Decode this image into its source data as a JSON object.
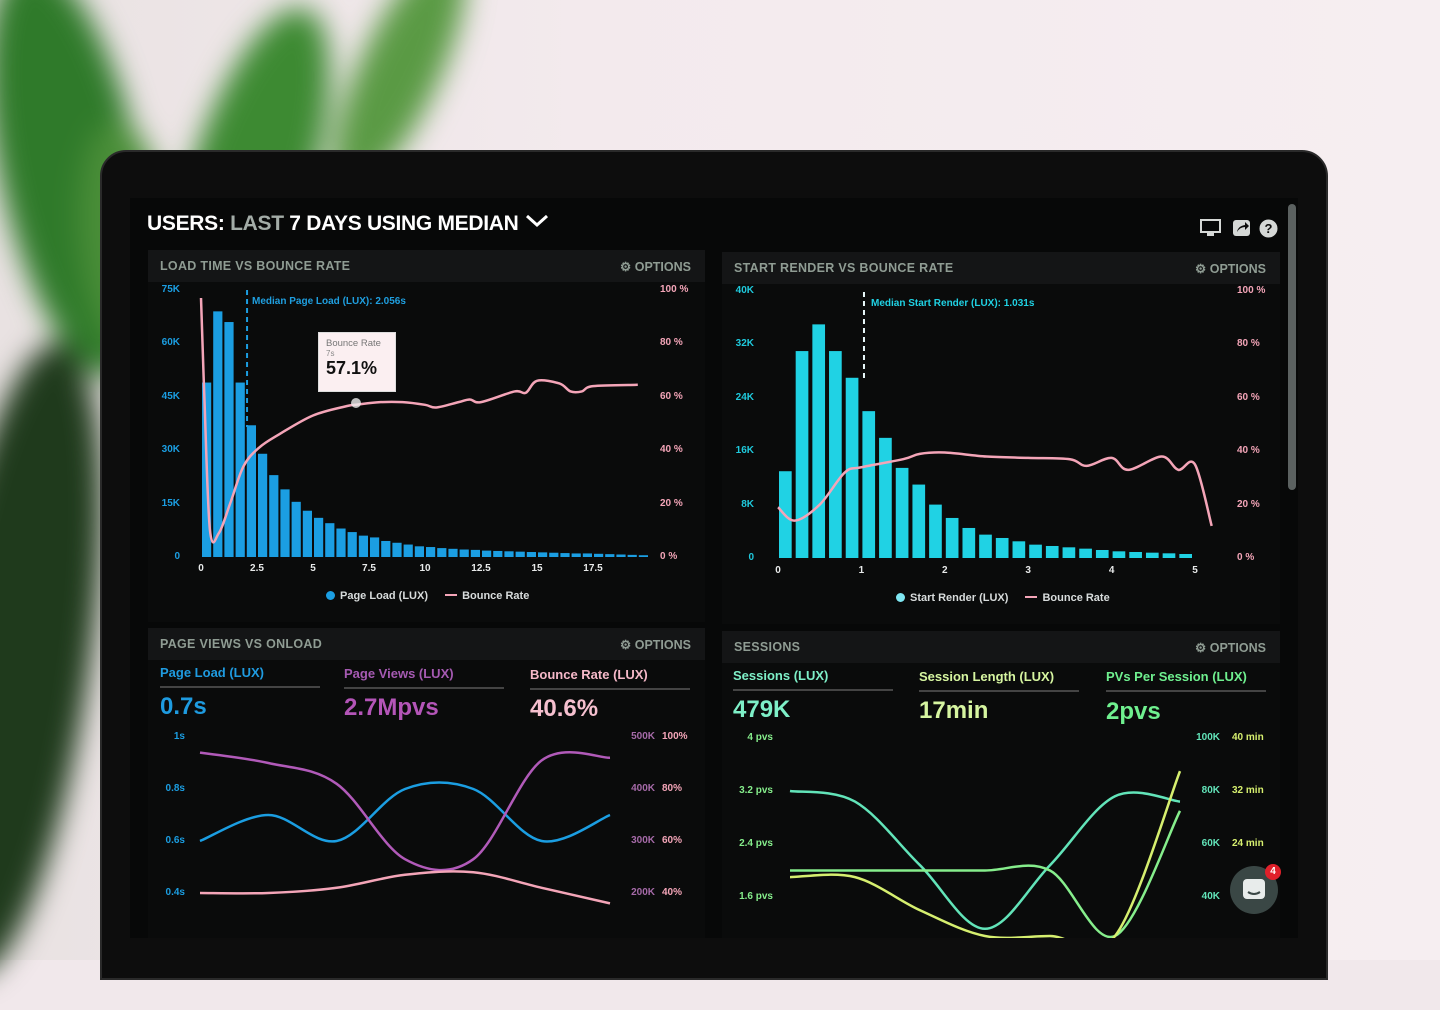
{
  "header": {
    "title_prefix": "USERS:",
    "title_range": "LAST",
    "title_rest": "7 DAYS USING MEDIAN",
    "chevron": "chevron-down-icon",
    "icons": [
      "monitor-icon",
      "share-icon",
      "help-icon"
    ]
  },
  "colors": {
    "page_load": "#1b9ee2",
    "start_render": "#20d2e4",
    "bounce": "#f4a5b8",
    "page_views": "#b15ab9",
    "sessions": "#62e4b9",
    "session_length": "#d6ef6f",
    "pvs_per_session": "#86ee8c"
  },
  "panels": {
    "load": {
      "title": "LOAD TIME VS BOUNCE RATE",
      "options": "OPTIONS",
      "median": "Median Page Load (LUX): 2.056s",
      "tooltip": {
        "label": "Bounce Rate",
        "sub": "7s",
        "value": "57.1%"
      },
      "legend": {
        "bars": "Page Load (LUX)",
        "line": "Bounce Rate"
      }
    },
    "render": {
      "title": "START RENDER VS BOUNCE RATE",
      "options": "OPTIONS",
      "median": "Median Start Render (LUX): 1.031s",
      "legend": {
        "bars": "Start Render (LUX)",
        "line": "Bounce Rate"
      }
    },
    "pageviews": {
      "title": "PAGE VIEWS VS ONLOAD",
      "options": "OPTIONS",
      "stats": [
        {
          "label": "Page Load (LUX)",
          "value": "0.7s"
        },
        {
          "label": "Page Views (LUX)",
          "value": "2.7Mpvs"
        },
        {
          "label": "Bounce Rate (LUX)",
          "value": "40.6%"
        }
      ]
    },
    "sessions": {
      "title": "SESSIONS",
      "options": "OPTIONS",
      "stats": [
        {
          "label": "Sessions (LUX)",
          "value": "479K"
        },
        {
          "label": "Session Length (LUX)",
          "value": "17min"
        },
        {
          "label": "PVs Per Session (LUX)",
          "value": "2pvs"
        }
      ]
    }
  },
  "chat": {
    "badge": "4"
  },
  "chart_data": [
    {
      "type": "bar",
      "x_ticks": [
        "0",
        "2.5",
        "5",
        "7.5",
        "10",
        "12.5",
        "15",
        "17.5"
      ],
      "xlim": [
        0,
        20
      ],
      "y_ticks": [
        "0",
        "15K",
        "30K",
        "45K",
        "60K",
        "75K"
      ],
      "ylim": [
        0,
        75000
      ],
      "y2_ticks": [
        "0 %",
        "20 %",
        "40 %",
        "60 %",
        "80 %",
        "100 %"
      ],
      "y2lim": [
        0,
        100
      ],
      "median_x": 2.056,
      "series": [
        {
          "name": "Page Load (LUX)",
          "type": "bar",
          "bar_width": 0.5,
          "x": [
            0,
            0.5,
            1,
            1.5,
            2,
            2.5,
            3,
            3.5,
            4,
            4.5,
            5,
            5.5,
            6,
            6.5,
            7,
            7.5,
            8,
            8.5,
            9,
            9.5,
            10,
            10.5,
            11,
            11.5,
            12,
            12.5,
            13,
            13.5,
            14,
            14.5,
            15,
            15.5,
            16,
            16.5,
            17,
            17.5,
            18,
            18.5,
            19,
            19.5
          ],
          "values": [
            49000,
            69000,
            66000,
            49000,
            37000,
            29000,
            23000,
            19000,
            15500,
            13000,
            11000,
            9500,
            8000,
            7000,
            6000,
            5500,
            4500,
            4000,
            3500,
            3000,
            2800,
            2500,
            2300,
            2100,
            2000,
            1800,
            1700,
            1600,
            1500,
            1400,
            1300,
            1200,
            1100,
            1000,
            1000,
            900,
            800,
            700,
            600,
            500
          ]
        },
        {
          "name": "Bounce Rate",
          "type": "line",
          "x": [
            0,
            0.15,
            0.4,
            0.8,
            1.3,
            1.9,
            2.6,
            3.5,
            5,
            6.5,
            7,
            8,
            9,
            10,
            10.5,
            11.5,
            12,
            12.5,
            14,
            14.5,
            15,
            16,
            16.5,
            17,
            17.5,
            19.5
          ],
          "values": [
            97,
            60,
            10,
            9,
            20,
            34,
            41,
            46,
            53,
            56.5,
            57.1,
            58,
            58,
            57,
            56,
            58,
            59,
            58,
            62,
            61.5,
            66,
            65,
            62,
            62,
            64,
            64.5
          ]
        }
      ]
    },
    {
      "type": "bar",
      "x_ticks": [
        "0",
        "1",
        "2",
        "3",
        "4",
        "5"
      ],
      "xlim": [
        0,
        5.3
      ],
      "y_ticks": [
        "0",
        "8K",
        "16K",
        "24K",
        "32K",
        "40K"
      ],
      "ylim": [
        0,
        40000
      ],
      "y2_ticks": [
        "0 %",
        "20 %",
        "40 %",
        "60 %",
        "80 %",
        "100 %"
      ],
      "y2lim": [
        0,
        100
      ],
      "median_x": 1.031,
      "series": [
        {
          "name": "Start Render (LUX)",
          "type": "bar",
          "bar_width": 0.2,
          "x": [
            0.1,
            0.3,
            0.5,
            0.7,
            0.9,
            1.1,
            1.3,
            1.5,
            1.7,
            1.9,
            2.1,
            2.3,
            2.5,
            2.7,
            2.9,
            3.1,
            3.3,
            3.5,
            3.7,
            3.9,
            4.1,
            4.3,
            4.5,
            4.7,
            4.9
          ],
          "values": [
            13000,
            31000,
            35000,
            31000,
            27000,
            22000,
            18000,
            13500,
            11000,
            8000,
            6000,
            4500,
            3500,
            3000,
            2500,
            2000,
            1800,
            1600,
            1400,
            1200,
            1000,
            900,
            800,
            700,
            600
          ]
        },
        {
          "name": "Bounce Rate",
          "type": "line",
          "x": [
            0,
            0.2,
            0.5,
            0.8,
            1,
            1.5,
            1.7,
            2,
            2.5,
            3,
            3.5,
            3.7,
            4,
            4.2,
            4.6,
            4.8,
            5,
            5.2
          ],
          "values": [
            19,
            14,
            20,
            32,
            34,
            37,
            39,
            39.5,
            38,
            37.5,
            37,
            34.5,
            37.5,
            33,
            38,
            33,
            35,
            12
          ]
        }
      ]
    },
    {
      "type": "line",
      "xlim": [
        0,
        6
      ],
      "y_ticks": [
        "0.4s",
        "0.6s",
        "0.8s",
        "1s"
      ],
      "ylim": [
        0.4,
        1.0
      ],
      "y2_ticks": [
        "200K",
        "300K",
        "400K",
        "500K"
      ],
      "y2lim": [
        200000,
        500000
      ],
      "y3_ticks": [
        "40%",
        "60%",
        "80%",
        "100%"
      ],
      "y3lim": [
        40,
        100
      ],
      "series": [
        {
          "name": "Page Load (LUX)",
          "axis": "y",
          "x": [
            0,
            1,
            2,
            3,
            4,
            5,
            6
          ],
          "values": [
            0.6,
            0.7,
            0.6,
            0.8,
            0.8,
            0.6,
            0.7
          ]
        },
        {
          "name": "Page Views (LUX)",
          "axis": "y2",
          "x": [
            0,
            1,
            2,
            3,
            4,
            5,
            6
          ],
          "values": [
            470000,
            450000,
            410000,
            265000,
            265000,
            455000,
            460000
          ]
        },
        {
          "name": "Bounce Rate (LUX)",
          "axis": "y3",
          "x": [
            0,
            1,
            2,
            3,
            4,
            5,
            6
          ],
          "values": [
            40,
            40,
            42,
            47,
            48,
            42,
            36
          ]
        }
      ]
    },
    {
      "type": "line",
      "xlim": [
        0,
        6
      ],
      "y_ticks": [
        "1.6 pvs",
        "2.4 pvs",
        "3.2 pvs",
        "4 pvs"
      ],
      "ylim": [
        1.6,
        4.0
      ],
      "y2_ticks": [
        "40K",
        "60K",
        "80K",
        "100K"
      ],
      "y2lim": [
        40000,
        100000
      ],
      "y3_ticks": [
        "24 min",
        "32 min",
        "40 min"
      ],
      "y3lim": [
        16,
        40
      ],
      "series": [
        {
          "name": "Sessions (LUX)",
          "axis": "y2",
          "x": [
            0,
            1,
            2,
            3,
            4,
            5,
            6
          ],
          "values": [
            80000,
            76000,
            52000,
            28000,
            52000,
            78000,
            76000
          ]
        },
        {
          "name": "PVs Per Session (LUX)",
          "axis": "y",
          "x": [
            0,
            1,
            2,
            3,
            4,
            5,
            6
          ],
          "values": [
            2.0,
            2.0,
            2.0,
            2.0,
            2.0,
            0.9,
            2.9
          ]
        },
        {
          "name": "Session Length (LUX)",
          "axis": "y3",
          "x": [
            0,
            1,
            2,
            3,
            4,
            5,
            6
          ],
          "values": [
            19,
            19,
            14,
            6,
            6,
            10,
            35
          ]
        }
      ]
    }
  ]
}
